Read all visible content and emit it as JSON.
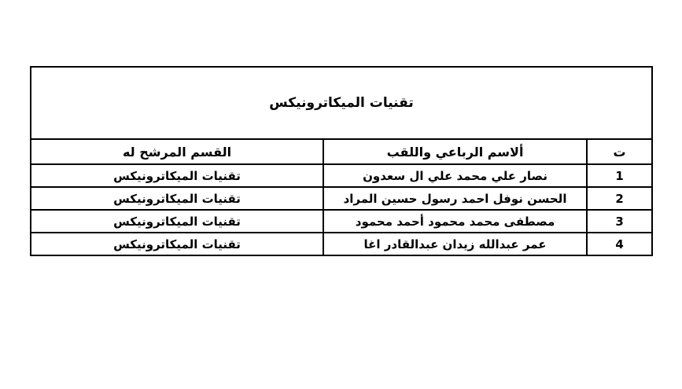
{
  "page": {
    "background": "#ffffff",
    "text_color": "#000000",
    "border_color": "#000000"
  },
  "table": {
    "title": "تقنيات الميكاترونيكس",
    "headers": {
      "index": "ت",
      "name": "ألاسم الرباعي واللقب",
      "department": "القسم المرشح له"
    },
    "rows": [
      {
        "index": "1",
        "name": "نصار علي محمد علي ال سعدون",
        "department": "تقنيات الميكاترونيكس"
      },
      {
        "index": "2",
        "name": "الحسن نوفل احمد رسول حسين المراد",
        "department": "تقنيات الميكاترونيكس"
      },
      {
        "index": "3",
        "name": "مصطفى محمد محمود أحمد محمود",
        "department": "تقنيات الميكاترونيكس"
      },
      {
        "index": "4",
        "name": "عمر عبدالله زيدان عبدالقادر اغا",
        "department": "تقنيات الميكاترونيكس"
      }
    ]
  }
}
